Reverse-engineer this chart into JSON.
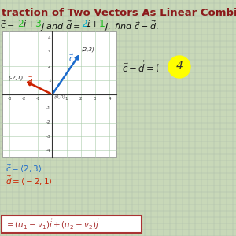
{
  "bg_color": "#c8d8b8",
  "grid_color": "#aabbaa",
  "title_text": "traction of Two Vectors As Linear Combina",
  "title_color": "#8b1a1a",
  "title_fontsize": 9.5,
  "prob_color": "#222222",
  "vec_c_color": "#1a6acc",
  "vec_d_color": "#cc2200",
  "num2_color": "#22bb22",
  "num3_color": "#22bb22",
  "num_neg2_color": "#00aacc",
  "vec_c": [
    2,
    3
  ],
  "vec_d": [
    -2,
    1
  ],
  "graph_xlim": [
    -3.5,
    4.5
  ],
  "graph_ylim": [
    -4.5,
    4.5
  ],
  "formula_box_color": "#aa3333",
  "yellow_circle_color": "#ffff00",
  "graph_bg": "#e8f0e8",
  "graph_grid_color": "#aaccaa",
  "graph_axis_color": "#333333",
  "tick_color": "#333333"
}
